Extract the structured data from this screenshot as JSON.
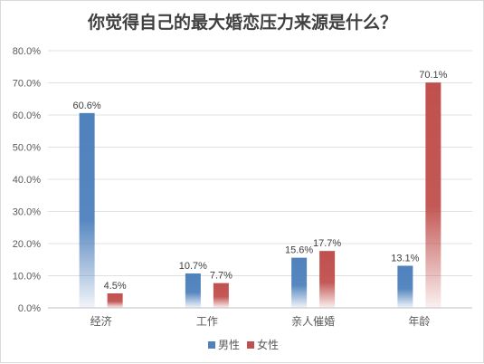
{
  "chart_data": {
    "type": "bar",
    "title": "你觉得自己的最大婚恋压力来源是什么？",
    "categories": [
      "经济",
      "工作",
      "亲人催婚",
      "年龄"
    ],
    "series": [
      {
        "name": "男性",
        "color": "#4f81bd",
        "values": [
          60.6,
          10.7,
          15.6,
          13.1
        ]
      },
      {
        "name": "女性",
        "color": "#c0504d",
        "values": [
          4.5,
          7.7,
          17.7,
          70.1
        ]
      }
    ],
    "ylim": [
      0,
      80
    ],
    "yticks": [
      "0.0%",
      "10.0%",
      "20.0%",
      "30.0%",
      "40.0%",
      "50.0%",
      "60.0%",
      "70.0%",
      "80.0%"
    ],
    "data_labels": [
      [
        "60.6%",
        "10.7%",
        "15.6%",
        "13.1%"
      ],
      [
        "4.5%",
        "7.7%",
        "17.7%",
        "70.1%"
      ]
    ],
    "legend_position": "bottom",
    "grid": true
  }
}
